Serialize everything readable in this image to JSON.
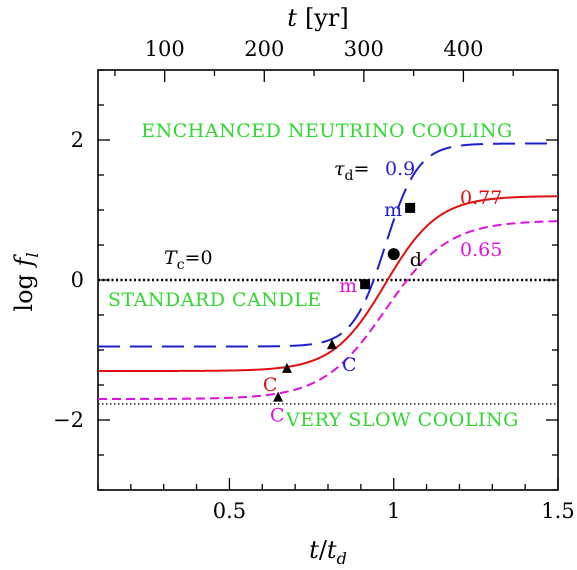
{
  "chart_data": {
    "type": "line",
    "xlabel": "t/t_d",
    "ylabel": "log f_l",
    "top_axis_label": "t  [yr]",
    "xlim": [
      0.1,
      1.5
    ],
    "ylim": [
      -3,
      3
    ],
    "top_axis_ticks": [
      100,
      200,
      300,
      400
    ],
    "top_axis_years_per_unit": 330,
    "x_ticks": [
      0.5,
      1,
      1.5
    ],
    "x_tick_labels": [
      "0.5",
      "1",
      "1.5"
    ],
    "y_ticks": [
      -2,
      0,
      2
    ],
    "y_tick_labels": [
      "−2",
      "0",
      "2"
    ],
    "reference_lines": [
      {
        "name": "T_c=0",
        "y": 0,
        "style": "dotted-thick"
      },
      {
        "name": "very-slow",
        "y": -1.77,
        "style": "dotted-thin"
      }
    ],
    "series": [
      {
        "tau": "0.9",
        "color": "#1f1fcf",
        "dash": "dash-long",
        "y_low": -0.95,
        "y_high": 1.95,
        "width": 0.05
      },
      {
        "tau": "0.77",
        "color": "#e01010",
        "dash": "solid",
        "y_low": -1.3,
        "y_high": 1.2,
        "width": 0.08
      },
      {
        "tau": "0.65",
        "color": "#e010e0",
        "dash": "dash-short",
        "y_low": -1.7,
        "y_high": 0.85,
        "width": 0.095
      }
    ],
    "markers": [
      {
        "label": "C",
        "x": 0.675,
        "y": -1.27,
        "shape": "triangle",
        "color": "#e01010"
      },
      {
        "label": "C",
        "x": 0.812,
        "y": -0.93,
        "shape": "triangle",
        "color": "#1f1fcf"
      },
      {
        "label": "C",
        "x": 0.648,
        "y": -1.68,
        "shape": "triangle",
        "color": "#e010e0"
      },
      {
        "label": "m",
        "x": 1.05,
        "y": 1.03,
        "shape": "square",
        "color": "#1f1fcf"
      },
      {
        "label": "m",
        "x": 0.913,
        "y": -0.06,
        "shape": "square",
        "color": "#e010e0"
      },
      {
        "label": "d",
        "x": 1.0,
        "y": 0.37,
        "shape": "circle",
        "color": "#000000"
      }
    ],
    "annotations": {
      "tau_prefix": "τ",
      "tau_sub": "d",
      "tau_eq": "=",
      "tc_T": "T",
      "tc_sub": "c",
      "tc_eq": "=0",
      "region_enhanced": "ENCHANCED NEUTRINO COOLING",
      "region_standard": "STANDARD CANDLE",
      "region_slow": "VERY SLOW COOLING"
    }
  }
}
